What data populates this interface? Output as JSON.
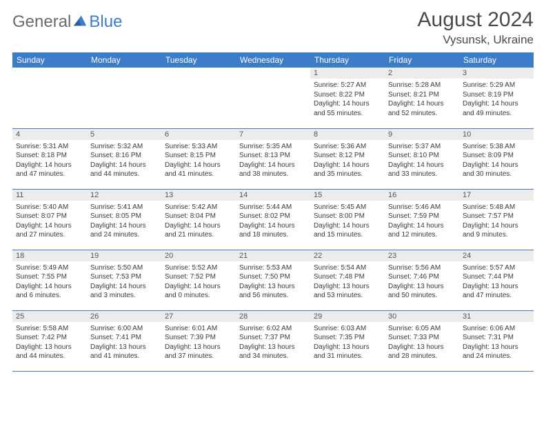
{
  "brand": {
    "part1": "General",
    "part2": "Blue"
  },
  "title": "August 2024",
  "location": "Vysunsk, Ukraine",
  "colors": {
    "header_bg": "#3d7cc9",
    "header_fg": "#ffffff",
    "daynum_bg": "#ececec",
    "text": "#3a3a3a",
    "rule": "#3d7cc9"
  },
  "weekdays": [
    "Sunday",
    "Monday",
    "Tuesday",
    "Wednesday",
    "Thursday",
    "Friday",
    "Saturday"
  ],
  "weeks": [
    [
      null,
      null,
      null,
      null,
      {
        "n": "1",
        "sunrise": "5:27 AM",
        "sunset": "8:22 PM",
        "daylight": "14 hours and 55 minutes."
      },
      {
        "n": "2",
        "sunrise": "5:28 AM",
        "sunset": "8:21 PM",
        "daylight": "14 hours and 52 minutes."
      },
      {
        "n": "3",
        "sunrise": "5:29 AM",
        "sunset": "8:19 PM",
        "daylight": "14 hours and 49 minutes."
      }
    ],
    [
      {
        "n": "4",
        "sunrise": "5:31 AM",
        "sunset": "8:18 PM",
        "daylight": "14 hours and 47 minutes."
      },
      {
        "n": "5",
        "sunrise": "5:32 AM",
        "sunset": "8:16 PM",
        "daylight": "14 hours and 44 minutes."
      },
      {
        "n": "6",
        "sunrise": "5:33 AM",
        "sunset": "8:15 PM",
        "daylight": "14 hours and 41 minutes."
      },
      {
        "n": "7",
        "sunrise": "5:35 AM",
        "sunset": "8:13 PM",
        "daylight": "14 hours and 38 minutes."
      },
      {
        "n": "8",
        "sunrise": "5:36 AM",
        "sunset": "8:12 PM",
        "daylight": "14 hours and 35 minutes."
      },
      {
        "n": "9",
        "sunrise": "5:37 AM",
        "sunset": "8:10 PM",
        "daylight": "14 hours and 33 minutes."
      },
      {
        "n": "10",
        "sunrise": "5:38 AM",
        "sunset": "8:09 PM",
        "daylight": "14 hours and 30 minutes."
      }
    ],
    [
      {
        "n": "11",
        "sunrise": "5:40 AM",
        "sunset": "8:07 PM",
        "daylight": "14 hours and 27 minutes."
      },
      {
        "n": "12",
        "sunrise": "5:41 AM",
        "sunset": "8:05 PM",
        "daylight": "14 hours and 24 minutes."
      },
      {
        "n": "13",
        "sunrise": "5:42 AM",
        "sunset": "8:04 PM",
        "daylight": "14 hours and 21 minutes."
      },
      {
        "n": "14",
        "sunrise": "5:44 AM",
        "sunset": "8:02 PM",
        "daylight": "14 hours and 18 minutes."
      },
      {
        "n": "15",
        "sunrise": "5:45 AM",
        "sunset": "8:00 PM",
        "daylight": "14 hours and 15 minutes."
      },
      {
        "n": "16",
        "sunrise": "5:46 AM",
        "sunset": "7:59 PM",
        "daylight": "14 hours and 12 minutes."
      },
      {
        "n": "17",
        "sunrise": "5:48 AM",
        "sunset": "7:57 PM",
        "daylight": "14 hours and 9 minutes."
      }
    ],
    [
      {
        "n": "18",
        "sunrise": "5:49 AM",
        "sunset": "7:55 PM",
        "daylight": "14 hours and 6 minutes."
      },
      {
        "n": "19",
        "sunrise": "5:50 AM",
        "sunset": "7:53 PM",
        "daylight": "14 hours and 3 minutes."
      },
      {
        "n": "20",
        "sunrise": "5:52 AM",
        "sunset": "7:52 PM",
        "daylight": "14 hours and 0 minutes."
      },
      {
        "n": "21",
        "sunrise": "5:53 AM",
        "sunset": "7:50 PM",
        "daylight": "13 hours and 56 minutes."
      },
      {
        "n": "22",
        "sunrise": "5:54 AM",
        "sunset": "7:48 PM",
        "daylight": "13 hours and 53 minutes."
      },
      {
        "n": "23",
        "sunrise": "5:56 AM",
        "sunset": "7:46 PM",
        "daylight": "13 hours and 50 minutes."
      },
      {
        "n": "24",
        "sunrise": "5:57 AM",
        "sunset": "7:44 PM",
        "daylight": "13 hours and 47 minutes."
      }
    ],
    [
      {
        "n": "25",
        "sunrise": "5:58 AM",
        "sunset": "7:42 PM",
        "daylight": "13 hours and 44 minutes."
      },
      {
        "n": "26",
        "sunrise": "6:00 AM",
        "sunset": "7:41 PM",
        "daylight": "13 hours and 41 minutes."
      },
      {
        "n": "27",
        "sunrise": "6:01 AM",
        "sunset": "7:39 PM",
        "daylight": "13 hours and 37 minutes."
      },
      {
        "n": "28",
        "sunrise": "6:02 AM",
        "sunset": "7:37 PM",
        "daylight": "13 hours and 34 minutes."
      },
      {
        "n": "29",
        "sunrise": "6:03 AM",
        "sunset": "7:35 PM",
        "daylight": "13 hours and 31 minutes."
      },
      {
        "n": "30",
        "sunrise": "6:05 AM",
        "sunset": "7:33 PM",
        "daylight": "13 hours and 28 minutes."
      },
      {
        "n": "31",
        "sunrise": "6:06 AM",
        "sunset": "7:31 PM",
        "daylight": "13 hours and 24 minutes."
      }
    ]
  ],
  "labels": {
    "sunrise": "Sunrise:",
    "sunset": "Sunset:",
    "daylight": "Daylight:"
  }
}
